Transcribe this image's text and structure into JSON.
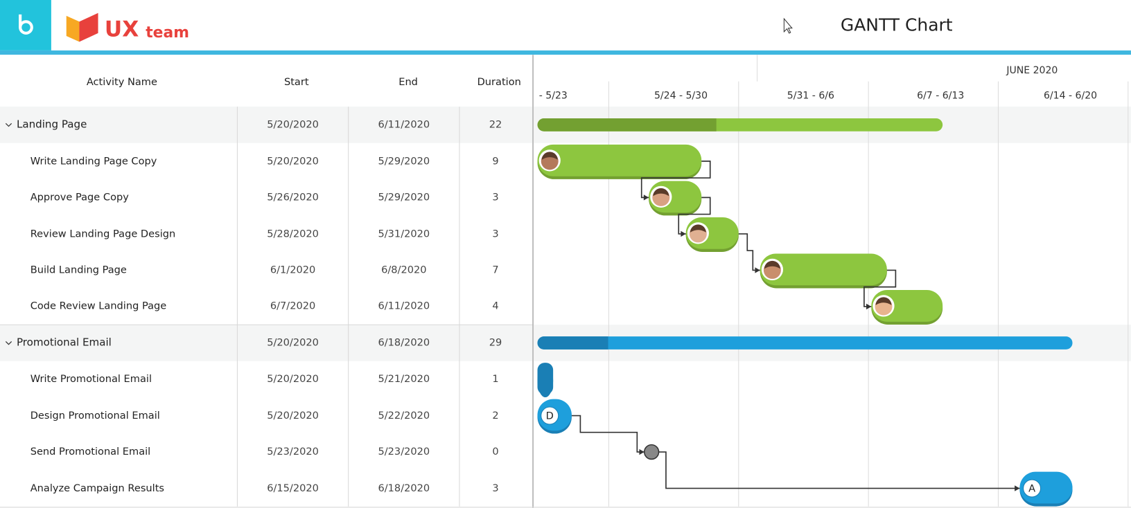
{
  "header": {
    "title": "GANTT Chart",
    "logo": "UX",
    "logo_suffix": "team"
  },
  "table": {
    "columns": [
      "Activity Name",
      "Start",
      "End",
      "Duration"
    ],
    "groups": [
      {
        "name": "Landing Page",
        "start": "5/20/2020",
        "end": "6/11/2020",
        "duration": "22",
        "tasks": [
          {
            "name": "Write Landing Page Copy",
            "start": "5/20/2020",
            "end": "5/29/2020",
            "duration": "9"
          },
          {
            "name": "Approve Page Copy",
            "start": "5/26/2020",
            "end": "5/29/2020",
            "duration": "3"
          },
          {
            "name": "Review Landing Page Design",
            "start": "5/28/2020",
            "end": "5/31/2020",
            "duration": "3"
          },
          {
            "name": "Build Landing Page",
            "start": "6/1/2020",
            "end": "6/8/2020",
            "duration": "7"
          },
          {
            "name": "Code Review Landing Page",
            "start": "6/7/2020",
            "end": "6/11/2020",
            "duration": "4"
          }
        ]
      },
      {
        "name": "Promotional Email",
        "start": "5/20/2020",
        "end": "6/18/2020",
        "duration": "29",
        "tasks": [
          {
            "name": "Write Promotional Email",
            "start": "5/20/2020",
            "end": "5/21/2020",
            "duration": "1"
          },
          {
            "name": "Design Promotional Email",
            "start": "5/20/2020",
            "end": "5/22/2020",
            "duration": "2",
            "badge": "D"
          },
          {
            "name": "Send Promotional Email",
            "start": "5/23/2020",
            "end": "5/23/2020",
            "duration": "0"
          },
          {
            "name": "Analyze Campaign Results",
            "start": "6/15/2020",
            "end": "6/18/2020",
            "duration": "3",
            "badge": "A"
          }
        ]
      }
    ]
  },
  "timeline": {
    "month": "JUNE 2020",
    "weeks": [
      "- 5/23",
      "5/24 - 5/30",
      "5/31 - 6/6",
      "6/7 - 6/13",
      "6/14 - 6/20"
    ]
  }
}
